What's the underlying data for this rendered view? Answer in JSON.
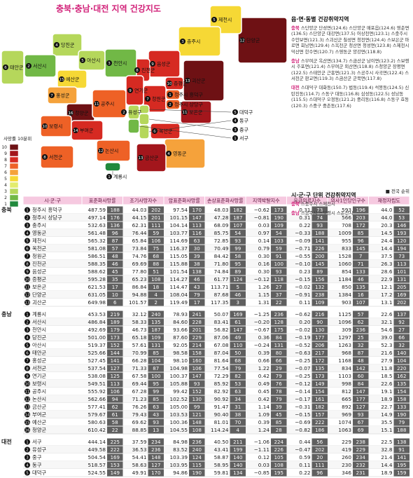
{
  "title": "충북·충남·대전 지역 건강지도",
  "legend": {
    "title": "사망률 10분위",
    "levels": [
      10,
      9,
      8,
      7,
      6,
      5,
      4,
      3,
      2,
      1
    ]
  },
  "notes": {
    "title": "읍·면·동별 건강취약지역",
    "items": [
      {
        "region": "충북",
        "text": "스단양군 단성면(124.6) 스단양군 매포읍(124.6) 영춘면(136.5) 스단양군 대강면(137.5) 어상천면(123.1) 스충주시 수안보면(121.3) 스괴산군 칠성면 청천면(124.4) 스보은군 마로면 회남면(129.4) 스옥천군 청산면 청성면(123.8) 스제천시 덕산면 한수면(120.7) 스영동군 양강면(118.8)"
      },
      {
        "region": "충남",
        "text": "스부여군 옥산면(134.7) 스금산군 남이면(123.2) 스보령시 주포면(121.4) 스부여군 외산면(118.8) 스청양군 장평면(122.5) 스태안군 근흥면(121.3) 스공주시 사곡면(122.4) 스서천군 판교면(119.3) 스금산군 군북면(117.8)"
      },
      {
        "region": "대전",
        "text": "스대덕구 대화동(150.7) 법동(119.4) 석봉동(124.5) 신탄진동(114.7) 스동구 대동(116.8) 삼성동(122.5) 성남동(115.5) 스대덕구 오정동(121.2) 중리동(116.8) 스동구 효동(120.3) 스중구 중촌동(117.6)"
      }
    ],
    "title2": "시·군·구 단위 건강취약지역",
    "items2": [
      {
        "region": "충북",
        "text": "스충주시 스제천시"
      },
      {
        "region": "충남",
        "text": "스공주시 스보령시 스논산시"
      }
    ]
  },
  "table": {
    "note": "■ 전국 순위",
    "columns": [
      "시·군·구",
      "표준화사망률",
      "조기사망자수",
      "암표준화사망률",
      "손상표준화사망률",
      "지역박탈지수",
      "응급의료지수",
      "의사1인당인구수",
      "재정자립도"
    ],
    "groups": [
      {
        "region": "충북",
        "rows": [
          {
            "no": 1,
            "name": "청주시 흥덕구",
            "cells": [
              "487.59",
              "188",
              "44.03",
              "202",
              "97.54",
              "170",
              "48.03",
              "182",
              "−0.62",
              "173",
              "0.31",
              "73",
              "593",
              "196",
              "44.0",
              "52"
            ]
          },
          {
            "no": 2,
            "name": "청주시 상당구",
            "cells": [
              "497.14",
              "176",
              "44.15",
              "201",
              "101.15",
              "147",
              "47.28",
              "187",
              "−0.81",
              "190",
              "0.31",
              "74",
              "566",
              "203",
              "44.0",
              "53"
            ]
          },
          {
            "no": 3,
            "name": "충주시",
            "cells": [
              "532.63",
              "136",
              "62.31",
              "111",
              "104.14",
              "113",
              "68.09",
              "107",
              "0.03",
              "109",
              "0.22",
              "93",
              "708",
              "172",
              "20.3",
              "146"
            ]
          },
          {
            "no": 4,
            "name": "영동군",
            "cells": [
              "561.48",
              "96",
              "76.44",
              "59",
              "103.77",
              "116",
              "85.75",
              "54",
              "0.97",
              "54",
              "−0.33",
              "188",
              "1009",
              "85",
              "14.5",
              "193"
            ]
          },
          {
            "no": 5,
            "name": "제천시",
            "cells": [
              "565.32",
              "87",
              "65.84",
              "106",
              "114.69",
              "63",
              "72.85",
              "93",
              "0.14",
              "103",
              "−0.09",
              "141",
              "955",
              "96",
              "24.4",
              "120"
            ]
          },
          {
            "no": 6,
            "name": "옥천군",
            "cells": [
              "581.08",
              "57",
              "73.84",
              "75",
              "116.37",
              "30",
              "70.49",
              "99",
              "0.79",
              "59",
              "−0.71",
              "226",
              "833",
              "145",
              "14.4",
              "194"
            ]
          },
          {
            "no": 7,
            "name": "청원군",
            "cells": [
              "586.51",
              "48",
              "74.76",
              "68",
              "115.05",
              "39",
              "84.42",
              "58",
              "0.30",
              "91",
              "−0.55",
              "200",
              "1528",
              "7",
              "37.5",
              "73"
            ]
          },
          {
            "no": 8,
            "name": "진천군",
            "cells": [
              "588.35",
              "46",
              "69.69",
              "88",
              "115.88",
              "38",
              "71.80",
              "95",
              "0.16",
              "100",
              "−0.10",
              "145",
              "1060",
              "71",
              "26.3",
              "113"
            ]
          },
          {
            "no": 9,
            "name": "음성군",
            "cells": [
              "588.62",
              "45",
              "77.80",
              "51",
              "101.54",
              "138",
              "74.84",
              "89",
              "0.30",
              "93",
              "0.23",
              "89",
              "854",
              "133",
              "28.6",
              "101"
            ]
          },
          {
            "no": 10,
            "name": "증평군",
            "cells": [
              "595.28",
              "35",
              "65.23",
              "108",
              "114.27",
              "46",
              "61.77",
              "124",
              "−0.12",
              "118",
              "−0.15",
              "156",
              "1184",
              "46",
              "22.9",
              "131"
            ]
          },
          {
            "no": 11,
            "name": "보은군",
            "cells": [
              "621.53",
              "17",
              "86.84",
              "18",
              "114.47",
              "43",
              "113.71",
              "5",
              "1.26",
              "27",
              "−0.02",
              "132",
              "850",
              "135",
              "12.1",
              "205"
            ]
          },
          {
            "no": 12,
            "name": "단양군",
            "cells": [
              "631.05",
              "10",
              "94.88",
              "4",
              "108.04",
              "79",
              "87.68",
              "46",
              "1.15",
              "37",
              "−0.91",
              "238",
              "1384",
              "16",
              "17.2",
              "169"
            ]
          },
          {
            "no": 13,
            "name": "괴산군",
            "cells": [
              "649.98",
              "6",
              "101.57",
              "2",
              "119.49",
              "17",
              "117.35",
              "3",
              "1.31",
              "22",
              "0.11",
              "109",
              "903",
              "107",
              "13.1",
              "202"
            ]
          }
        ]
      },
      {
        "region": "충남",
        "rows": [
          {
            "no": 1,
            "name": "계룡시",
            "cells": [
              "453.53",
              "219",
              "32.12",
              "240",
              "78.93",
              "241",
              "50.07",
              "169",
              "−1.25",
              "236",
              "−0.62",
              "216",
              "1125",
              "57",
              "22.6",
              "137"
            ]
          },
          {
            "no": 2,
            "name": "서산시",
            "cells": [
              "486.84",
              "189",
              "58.33",
              "135",
              "84.60",
              "228",
              "83.41",
              "61",
              "−0.20",
              "128",
              "0.20",
              "90",
              "1096",
              "62",
              "32.1",
              "92"
            ]
          },
          {
            "no": 3,
            "name": "천안시",
            "cells": [
              "492.69",
              "179",
              "46.73",
              "187",
              "93.66",
              "201",
              "56.82",
              "147",
              "−0.67",
              "175",
              "−0.02",
              "130",
              "309",
              "236",
              "54.6",
              "27"
            ]
          },
          {
            "no": 4,
            "name": "당진군",
            "cells": [
              "501.00",
              "173",
              "65.18",
              "109",
              "87.60",
              "229",
              "87.06",
              "49",
              "0.36",
              "84",
              "−0.19",
              "177",
              "1297",
              "25",
              "39.0",
              "66"
            ]
          },
          {
            "no": 5,
            "name": "아산시",
            "cells": [
              "519.37",
              "152",
              "57.61",
              "131",
              "92.05",
              "214",
              "67.08",
              "110",
              "−0.24",
              "131",
              "−0.52",
              "206",
              "1263",
              "32",
              "52.3",
              "32"
            ]
          },
          {
            "no": 6,
            "name": "태안군",
            "cells": [
              "525.66",
              "144",
              "70.99",
              "85",
              "98.58",
              "158",
              "87.04",
              "50",
              "0.39",
              "80",
              "−0.63",
              "217",
              "968",
              "87",
              "21.6",
              "140"
            ]
          },
          {
            "no": 7,
            "name": "홍성군",
            "cells": [
              "527.45",
              "141",
              "66.28",
              "104",
              "98.10",
              "160",
              "81.64",
              "68",
              "0.66",
              "66",
              "−0.25",
              "172",
              "1168",
              "48",
              "27.9",
              "104"
            ]
          },
          {
            "no": 8,
            "name": "서천군",
            "cells": [
              "537.54",
              "127",
              "71.33",
              "87",
              "104.98",
              "106",
              "77.54",
              "79",
              "1.22",
              "29",
              "−0.07",
              "135",
              "834",
              "142",
              "11.8",
              "220"
            ]
          },
          {
            "no": 9,
            "name": "연기군",
            "cells": [
              "538.08",
              "125",
              "67.58",
              "100",
              "100.37",
              "147",
              "72.29",
              "82",
              "0.42",
              "79",
              "−0.25",
              "173",
              "1103",
              "60",
              "18.5",
              "162"
            ]
          },
          {
            "no": 10,
            "name": "보령시",
            "cells": [
              "549.51",
              "113",
              "69.44",
              "95",
              "105.88",
              "93",
              "85.92",
              "53",
              "0.49",
              "76",
              "−0.12",
              "149",
              "998",
              "84",
              "22.6",
              "135"
            ]
          },
          {
            "no": 11,
            "name": "공주시",
            "cells": [
              "555.92",
              "106",
              "67.28",
              "99",
              "99.42",
              "152",
              "82.92",
              "63",
              "0.45",
              "78",
              "−0.14",
              "154",
              "812",
              "147",
              "19.1",
              "154"
            ]
          },
          {
            "no": 12,
            "name": "논산시",
            "cells": [
              "562.66",
              "94",
              "71.23",
              "85",
              "102.52",
              "130",
              "90.92",
              "34",
              "0.42",
              "79",
              "−0.17",
              "161",
              "665",
              "177",
              "18.9",
              "158"
            ]
          },
          {
            "no": 13,
            "name": "금산군",
            "cells": [
              "577.41",
              "62",
              "76.26",
              "63",
              "105.00",
              "99",
              "91.47",
              "31",
              "1.14",
              "39",
              "−0.31",
              "182",
              "892",
              "127",
              "22.7",
              "133"
            ]
          },
          {
            "no": 14,
            "name": "부여군",
            "cells": [
              "579.67",
              "61",
              "79.43",
              "43",
              "103.53",
              "121",
              "90.40",
              "38",
              "1.09",
              "45",
              "−0.15",
              "157",
              "969",
              "93",
              "14.9",
              "190"
            ]
          },
          {
            "no": 15,
            "name": "예산군",
            "cells": [
              "580.63",
              "58",
              "69.62",
              "93",
              "100.36",
              "148",
              "81.01",
              "70",
              "0.39",
              "85",
              "−0.69",
              "222",
              "1074",
              "67",
              "35.5",
              "79"
            ]
          },
          {
            "no": 16,
            "name": "청양군",
            "cells": [
              "610.42",
              "22",
              "88.85",
              "13",
              "104.55",
              "108",
              "114.24",
              "4",
              "1.24",
              "28",
              "−0.82",
              "186",
              "1063",
              "69",
              "15.1",
              "188"
            ]
          }
        ]
      },
      {
        "region": "대전",
        "rows": [
          {
            "no": 1,
            "name": "서구",
            "cells": [
              "444.14",
              "225",
              "37.59",
              "234",
              "84.98",
              "236",
              "40.50",
              "211",
              "−1.06",
              "224",
              "0.44",
              "56",
              "229",
              "238",
              "22.5",
              "138"
            ]
          },
          {
            "no": 2,
            "name": "유성구",
            "cells": [
              "449.58",
              "222",
              "36.53",
              "236",
              "83.52",
              "240",
              "43.41",
              "199",
              "−1.11",
              "226",
              "−0.47",
              "202",
              "419",
              "229",
              "32.8",
              "91"
            ]
          },
          {
            "no": 3,
            "name": "중구",
            "cells": [
              "504.54",
              "169",
              "54.41",
              "148",
              "103.39",
              "124",
              "58.87",
              "140",
              "0.12",
              "105",
              "0.59",
              "20",
              "260",
              "234",
              "21.4",
              "141"
            ]
          },
          {
            "no": 4,
            "name": "동구",
            "cells": [
              "518.57",
              "153",
              "58.63",
              "127",
              "103.95",
              "115",
              "58.95",
              "140",
              "0.03",
              "108",
              "0.11",
              "111",
              "230",
              "232",
              "14.4",
              "195"
            ]
          },
          {
            "no": 5,
            "name": "대덕구",
            "cells": [
              "524.55",
              "149",
              "49.91",
              "170",
              "94.86",
              "190",
              "59.81",
              "134",
              "−0.85",
              "195",
              "0.22",
              "96",
              "346",
              "231",
              "18.9",
              "159"
            ]
          }
        ]
      }
    ]
  }
}
